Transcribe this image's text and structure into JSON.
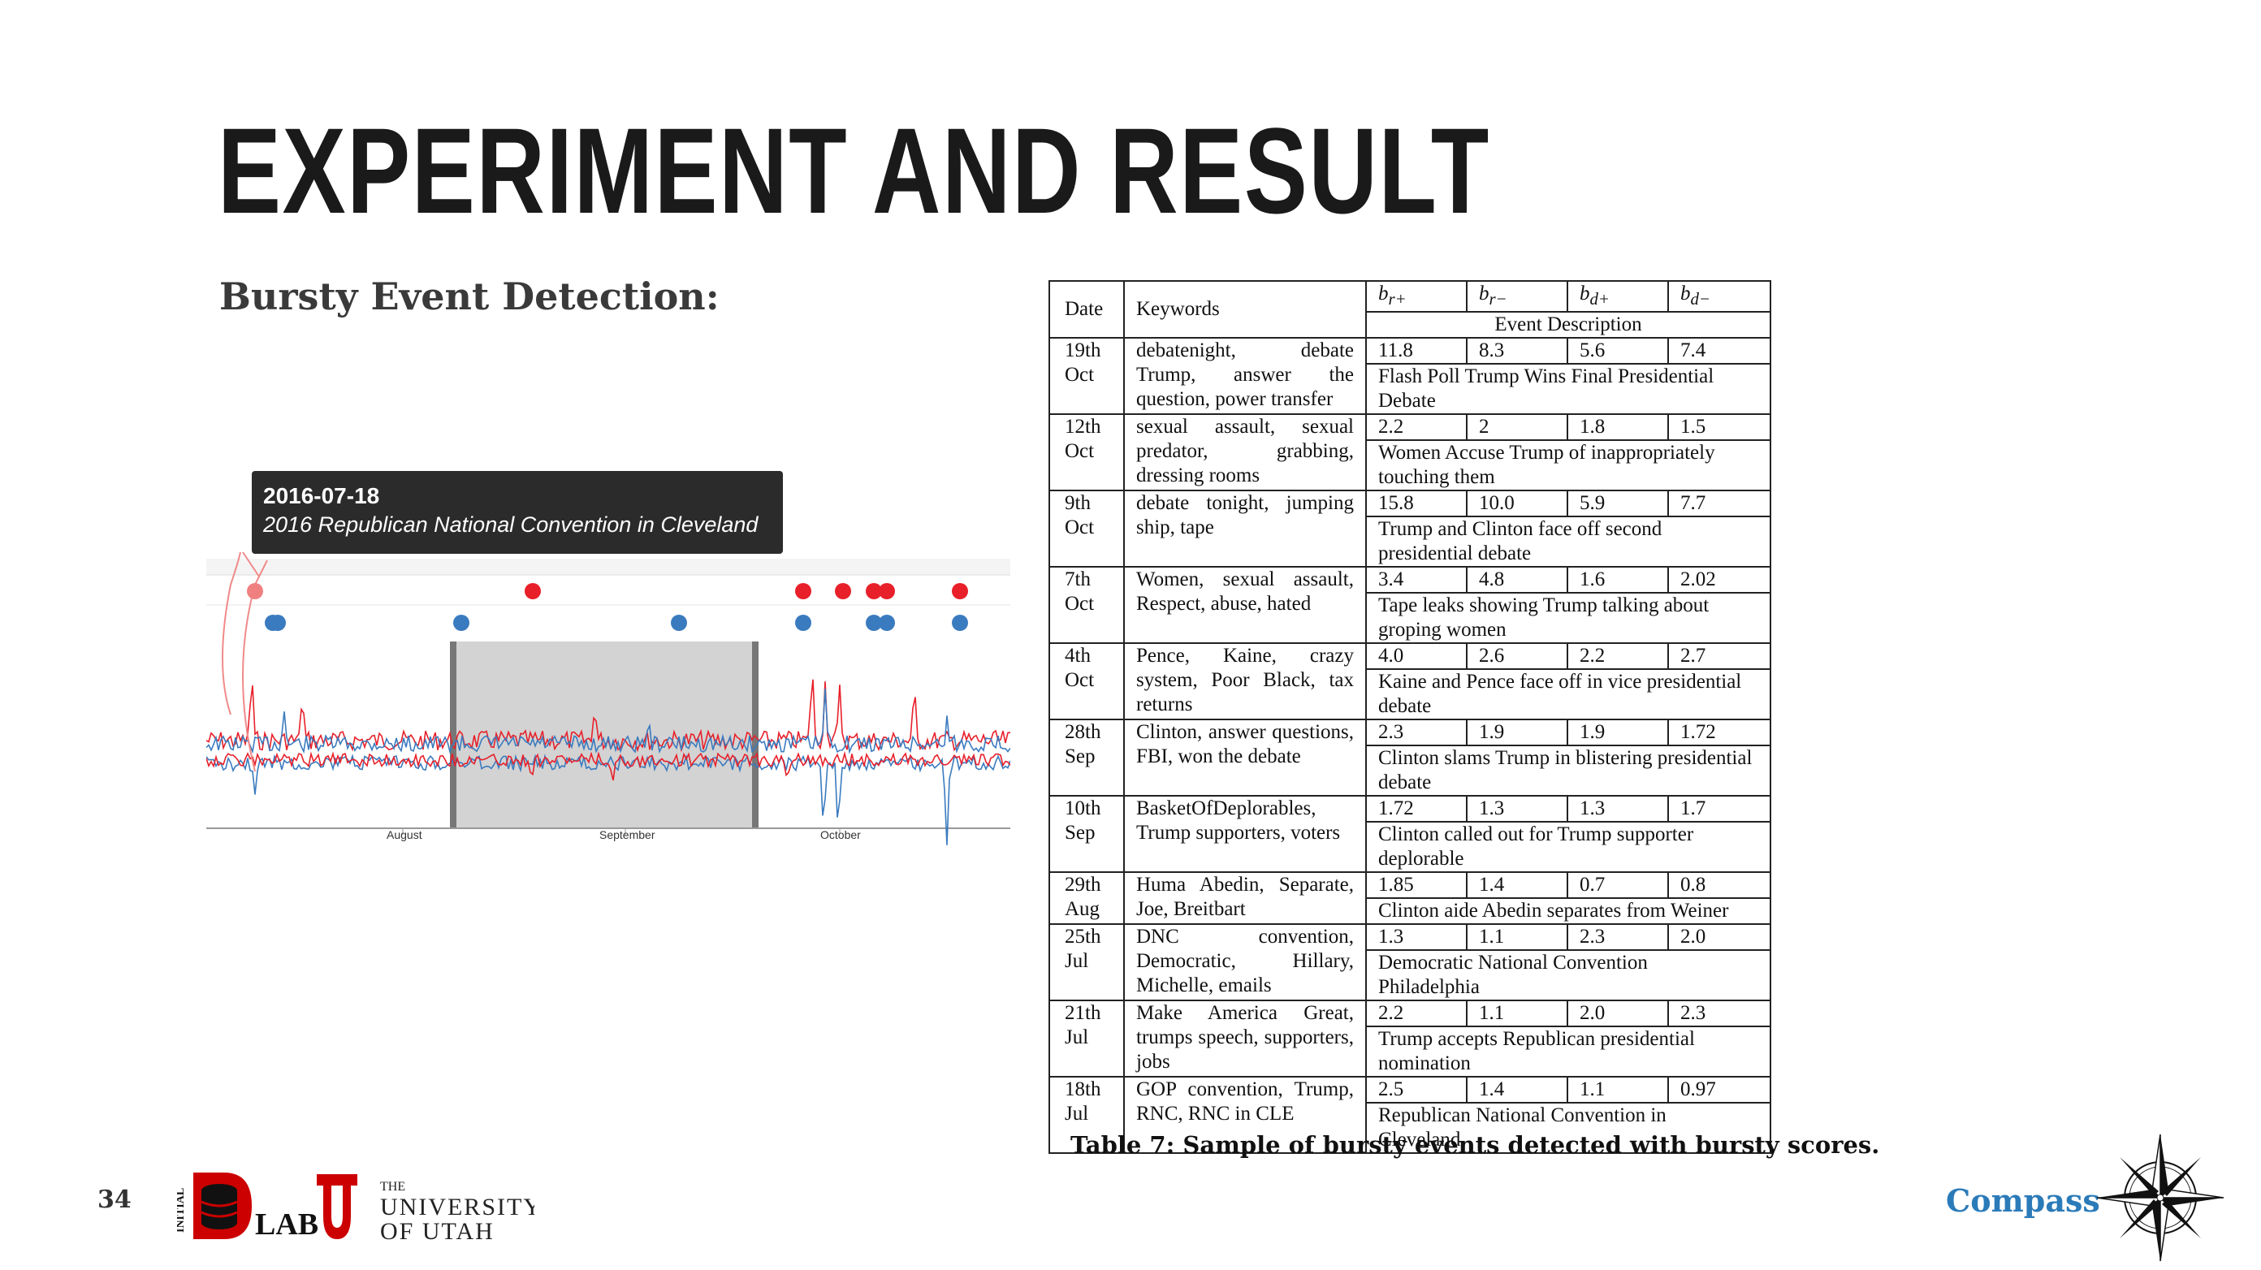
{
  "slide": {
    "title": "EXPERIMENT AND RESULT",
    "subtitle": "Bursty Event Detection:",
    "page_number": "34"
  },
  "chart": {
    "tooltip_date": "2016-07-18",
    "tooltip_event": "2016 Republican National Convention in Cleveland",
    "month_labels": [
      "August",
      "September",
      "October"
    ],
    "colors": {
      "series_a": "#e8202a",
      "series_b": "#3a7bbf",
      "highlight": "#d3d3d3"
    }
  },
  "table": {
    "headers": {
      "date": "Date",
      "keywords": "Keywords",
      "br_plus": "b_r+",
      "br_minus": "b_r−",
      "bd_plus": "b_d+",
      "bd_minus": "b_d−",
      "event_description": "Event Description"
    },
    "rows": [
      {
        "date": "19th Oct",
        "keywords": "debatenight, debate Trump, answer the question, power transfer",
        "br_plus": "11.8",
        "br_minus": "8.3",
        "bd_plus": "5.6",
        "bd_minus": "7.4",
        "description": "Flash Poll Trump Wins Final Presidential Debate"
      },
      {
        "date": "12th Oct",
        "keywords": "sexual assault, sexual predator, grabbing, dressing rooms",
        "br_plus": "2.2",
        "br_minus": "2",
        "bd_plus": "1.8",
        "bd_minus": "1.5",
        "description": "Women Accuse Trump of inappropriately touching them"
      },
      {
        "date": "9th Oct",
        "keywords": "debate tonight, jumping ship, tape",
        "br_plus": "15.8",
        "br_minus": "10.0",
        "bd_plus": "5.9",
        "bd_minus": "7.7",
        "description": "Trump and Clinton face off second presidential debate"
      },
      {
        "date": "7th Oct",
        "keywords": "Women, sexual assault, Respect, abuse, hated",
        "br_plus": "3.4",
        "br_minus": "4.8",
        "bd_plus": "1.6",
        "bd_minus": "2.02",
        "description": "Tape leaks showing Trump talking about groping women"
      },
      {
        "date": "4th Oct",
        "keywords": "Pence, Kaine, crazy system, Poor Black, tax returns",
        "br_plus": "4.0",
        "br_minus": "2.6",
        "bd_plus": "2.2",
        "bd_minus": "2.7",
        "description": "Kaine and Pence face off in vice presidential debate"
      },
      {
        "date": "28th Sep",
        "keywords": "Clinton, answer questions, FBI, won the debate",
        "br_plus": "2.3",
        "br_minus": "1.9",
        "bd_plus": "1.9",
        "bd_minus": "1.72",
        "description": "Clinton slams Trump in blistering presidential debate"
      },
      {
        "date": "10th Sep",
        "keywords": "BasketOfDeplorables, Trump supporters, voters",
        "br_plus": "1.72",
        "br_minus": "1.3",
        "bd_plus": "1.3",
        "bd_minus": "1.7",
        "description": "Clinton called out for Trump supporter deplorable"
      },
      {
        "date": "29th Aug",
        "keywords": "Huma Abedin, Separate, Joe, Breitbart",
        "br_plus": "1.85",
        "br_minus": "1.4",
        "bd_plus": "0.7",
        "bd_minus": "0.8",
        "description": "Clinton aide Abedin separates from Weiner"
      },
      {
        "date": "25th Jul",
        "keywords": "DNC convention, Democratic, Hillary, Michelle, emails",
        "br_plus": "1.3",
        "br_minus": "1.1",
        "bd_plus": "2.3",
        "bd_minus": "2.0",
        "description": "Democratic National Convention Philadelphia"
      },
      {
        "date": "21th Jul",
        "keywords": "Make America Great, trumps speech, supporters, jobs",
        "br_plus": "2.2",
        "br_minus": "1.1",
        "bd_plus": "2.0",
        "bd_minus": "2.3",
        "description": "Trump accepts Republican presidential nomination"
      },
      {
        "date": "18th Jul",
        "keywords": "GOP convention, Trump, RNC, RNC in CLE",
        "br_plus": "2.5",
        "br_minus": "1.4",
        "bd_plus": "1.1",
        "bd_minus": "0.97",
        "description": "Republican National Convention in Cleveland"
      }
    ],
    "caption": "Table 7: Sample of bursty events detected with bursty scores."
  },
  "footer": {
    "logo_text": {
      "initial": "INITIAL",
      "lab": "LAB",
      "the": "THE",
      "university": "UNIVERSITY",
      "of_utah": "OF UTAH"
    },
    "compass_label": "Compass",
    "colors": {
      "utah_red": "#cc0000",
      "compass_blue": "#2b7bb9"
    }
  }
}
